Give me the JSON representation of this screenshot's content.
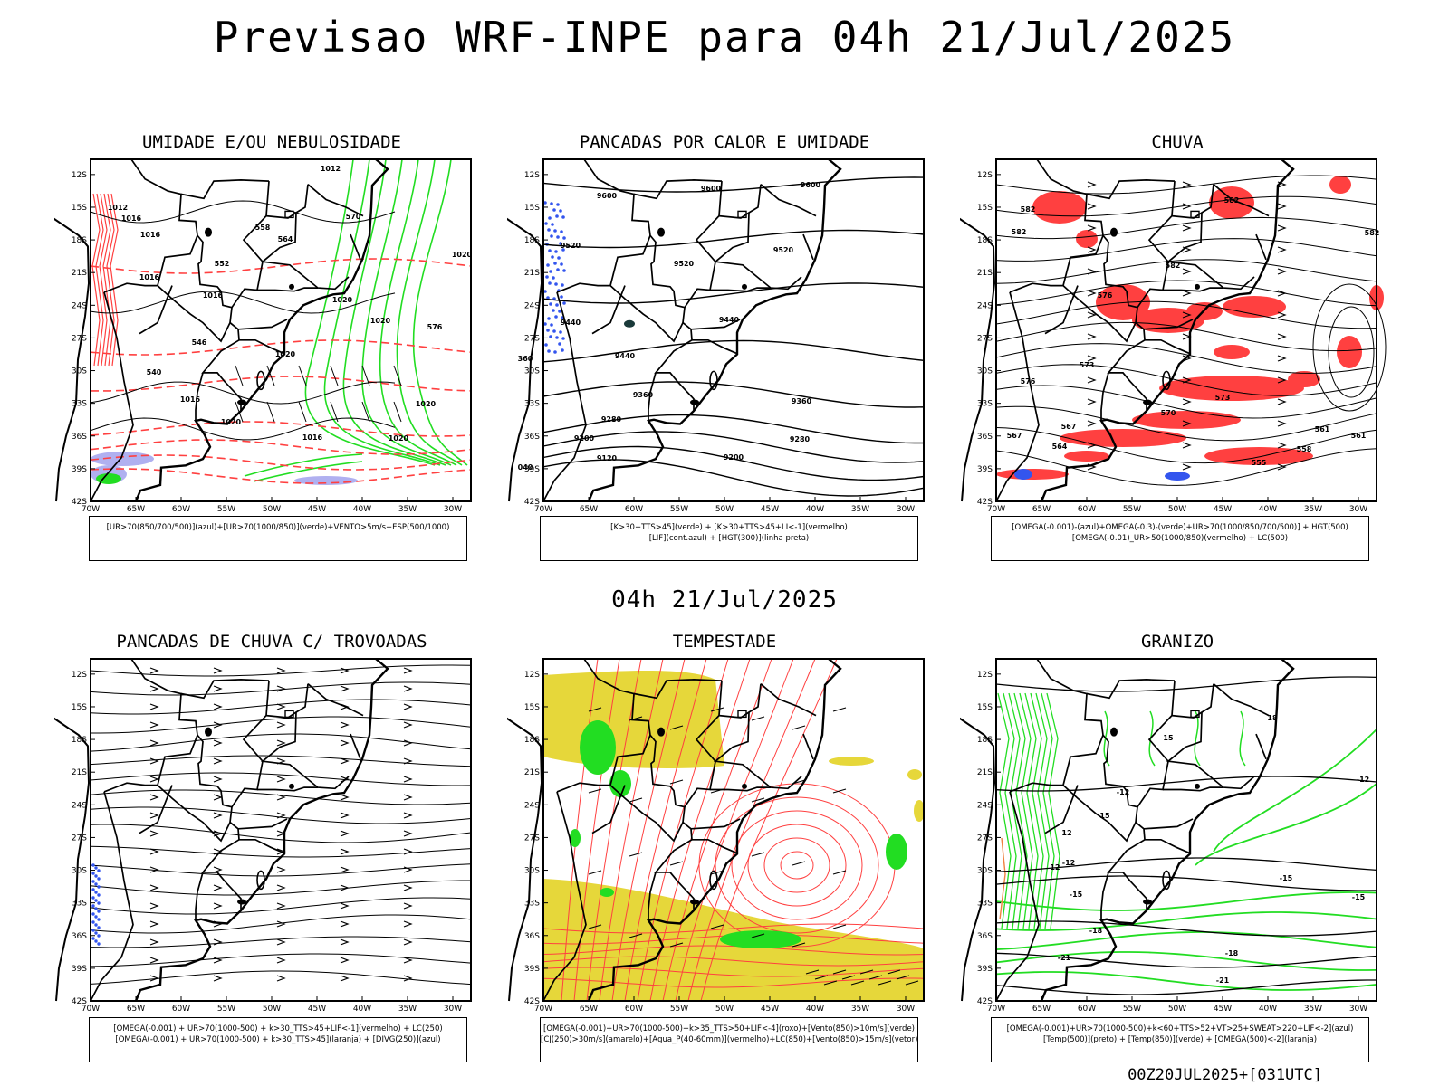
{
  "title": "Previsao WRF-INPE  para 04h 21/Jul/2025",
  "mid_date": "04h 21/Jul/2025",
  "footer_stamp": "00Z20JUL2025+[031UTC]",
  "axes": {
    "lat_labels": [
      "12S",
      "15S",
      "18S",
      "21S",
      "24S",
      "27S",
      "30S",
      "33S",
      "36S",
      "39S",
      "42S"
    ],
    "lon_labels": [
      "70W",
      "65W",
      "60W",
      "55W",
      "50W",
      "45W",
      "40W",
      "35W",
      "30W"
    ]
  },
  "colors": {
    "red": "#ff4040",
    "green": "#22dd22",
    "blue": "#3355ee",
    "yellow": "#e6d73a",
    "lavender": "#b0b0f0",
    "orange": "#f08040"
  },
  "panels": [
    {
      "title": "UMIDADE E/OU NEBULOSIDADE",
      "legend": [
        "[UR>70(850/700/500)](azul)+[UR>70(1000/850)](verde)+VENTO>5m/s+ESP(500/1000)"
      ],
      "contour_labels": [
        "1012",
        "1016",
        "1016",
        "1012",
        "1020",
        "1016",
        "1016",
        "1020",
        "1020",
        "1016",
        "1020",
        "1020",
        "1016",
        "1020",
        "1020",
        "570",
        "564",
        "558",
        "552",
        "546",
        "540",
        "576"
      ]
    },
    {
      "title": "PANCADAS POR CALOR E UMIDADE",
      "legend": [
        "[K>30+TTS>45](verde) + [K>30+TTS>45+LI<-1](vermelho)",
        "[LIF](cont.azul) + [HGT(300)](linha preta)"
      ],
      "contour_labels": [
        "9600",
        "9600",
        "9600",
        "9520",
        "9520",
        "9520",
        "9440",
        "9440",
        "9440",
        "9360",
        "9360",
        "9280",
        "9280",
        "9200",
        "9200",
        "9120",
        "040",
        "360"
      ]
    },
    {
      "title": "CHUVA",
      "legend": [
        "[OMEGA(-0.001)-(azul)+OMEGA(-0.3)-(verde)+UR>70(1000/850/700/500)] + HGT(500)",
        "[OMEGA(-0.01)_UR>50(1000/850)(vermelho) + LC(500)"
      ],
      "contour_labels": [
        "582",
        "582",
        "582",
        "582",
        "576",
        "576",
        "573",
        "573",
        "570",
        "567",
        "567",
        "564",
        "561",
        "561",
        "558",
        "555",
        "582"
      ]
    },
    {
      "title": "PANCADAS DE CHUVA C/ TROVOADAS",
      "legend": [
        "[OMEGA(-0.001) + UR>70(1000-500) + k>30_TTS>45+LIF<-1](vermelho) + LC(250)",
        "[OMEGA(-0.001) + UR>70(1000-500) + k>30_TTS>45](laranja) + [DIVG(250)](azul)"
      ]
    },
    {
      "title": "TEMPESTADE",
      "legend": [
        "[OMEGA(-0.001)+UR>70(1000-500)+k>35_TTS>50+LIF<-4](roxo)+[Vento(850)>10m/s](verde)",
        "[CJ(250)>30m/s](amarelo)+[Agua_P(40-60mm)](vermelho)+LC(850)+[Vento(850)>15m/s](vetor)"
      ]
    },
    {
      "title": "GRANIZO",
      "legend": [
        "[OMEGA(-0.001)+UR>70(1000-500)+k<60+TTS>52+VT>25+SWEAT>220+LIF<-2](azul)",
        "[Temp(500)](preto) + [Temp(850)](verde) + [OMEGA(500)<-2](laranja)"
      ],
      "contour_labels": [
        "-12",
        "-12",
        "-12",
        "-15",
        "-15",
        "-15",
        "-18",
        "-18",
        "-21",
        "-21",
        "12",
        "12",
        "15",
        "15",
        "18"
      ]
    }
  ]
}
